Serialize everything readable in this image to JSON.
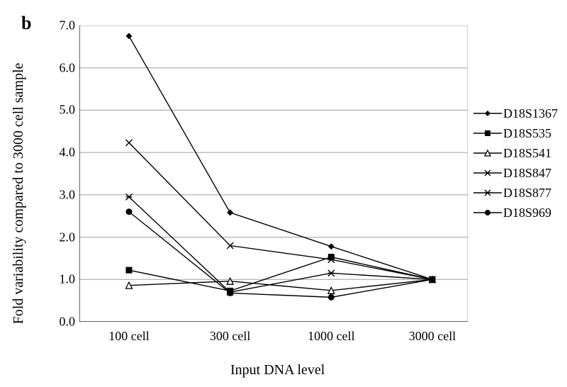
{
  "panel_label": "b",
  "xlabel": "Input DNA level",
  "ylabel": "Fold variability compared to 3000 cell sample",
  "chart": {
    "type": "line",
    "background_color": "#ffffff",
    "grid_color": "#9f9f9f",
    "axis_color": "#000000",
    "line_color": "#000000",
    "line_width": 1.4,
    "marker_size": 9,
    "ylim": [
      0.0,
      7.0
    ],
    "ytick_step": 1.0,
    "yticks": [
      "0.0",
      "1.0",
      "2.0",
      "3.0",
      "4.0",
      "5.0",
      "6.0",
      "7.0"
    ],
    "categories": [
      "100 cell",
      "300 cell",
      "1000 cell",
      "3000 cell"
    ],
    "title_fontsize": 18,
    "label_fontsize": 20,
    "tick_fontsize": 18,
    "series": [
      {
        "name": "D18S1367",
        "marker": "diamond-filled",
        "values": [
          6.75,
          2.58,
          1.78,
          1.0
        ]
      },
      {
        "name": "D18S535",
        "marker": "square-filled",
        "values": [
          1.22,
          0.73,
          1.53,
          1.0
        ]
      },
      {
        "name": "D18S541",
        "marker": "triangle-open",
        "values": [
          0.86,
          0.96,
          0.74,
          1.0
        ]
      },
      {
        "name": "D18S847",
        "marker": "x",
        "values": [
          4.23,
          1.8,
          1.47,
          1.0
        ]
      },
      {
        "name": "D18S877",
        "marker": "asterisk",
        "values": [
          2.95,
          0.7,
          1.15,
          1.0
        ]
      },
      {
        "name": "D18S969",
        "marker": "circle-filled",
        "values": [
          2.6,
          0.68,
          0.58,
          1.0
        ]
      }
    ]
  }
}
